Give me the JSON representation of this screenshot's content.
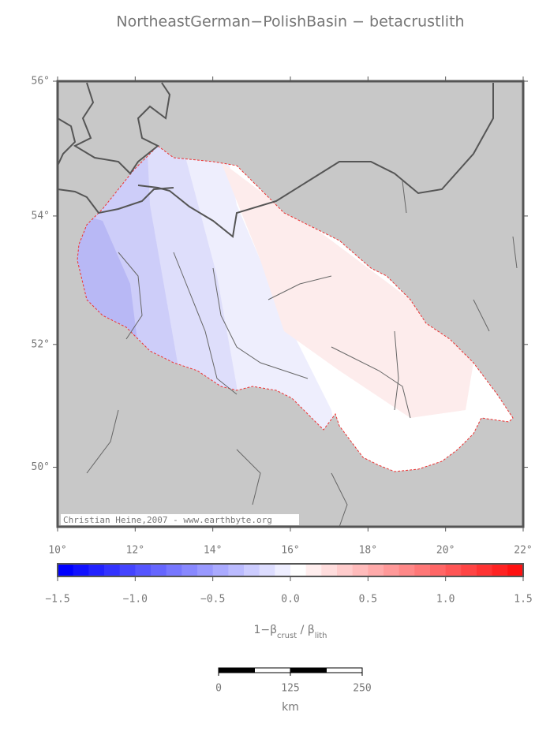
{
  "title": "NortheastGerman−PolishBasin − betacrustlith",
  "map": {
    "lon_range": [
      10,
      22
    ],
    "lat_range": [
      49,
      56
    ],
    "lon_ticks": [
      {
        "value": 10,
        "label": "10°"
      },
      {
        "value": 12,
        "label": "12°"
      },
      {
        "value": 14,
        "label": "14°"
      },
      {
        "value": 16,
        "label": "16°"
      },
      {
        "value": 18,
        "label": "18°"
      },
      {
        "value": 20,
        "label": "20°"
      },
      {
        "value": 22,
        "label": "22°"
      }
    ],
    "lat_ticks": [
      {
        "value": 50,
        "label": "50°"
      },
      {
        "value": 52,
        "label": "52°"
      },
      {
        "value": 54,
        "label": "54°"
      },
      {
        "value": 56,
        "label": "56°"
      }
    ],
    "credit": "Christian Heine,2007 - www.earthbyte.org"
  },
  "colorbar": {
    "range": [
      -1.5,
      1.5
    ],
    "colors": [
      "#0000ff",
      "#1111ff",
      "#2222ff",
      "#3333ff",
      "#4444ff",
      "#5555ff",
      "#6666ff",
      "#7777ff",
      "#8888ff",
      "#9999ff",
      "#aaaaff",
      "#bbbbff",
      "#ccccff",
      "#ddddff",
      "#eeeeff",
      "#ffffff",
      "#ffeeee",
      "#ffdddd",
      "#ffcccc",
      "#ffbbbb",
      "#ffaaaa",
      "#ff9999",
      "#ff8888",
      "#ff7777",
      "#ff6666",
      "#ff5555",
      "#ff4444",
      "#ff3333",
      "#ff2222",
      "#ff1111"
    ],
    "ticks": [
      {
        "value": -1.5,
        "label": "−1.5"
      },
      {
        "value": -1.0,
        "label": "−1.0"
      },
      {
        "value": -0.5,
        "label": "−0.5"
      },
      {
        "value": 0,
        "label": "0.0"
      },
      {
        "value": 0.5,
        "label": "0.5"
      },
      {
        "value": 1.0,
        "label": "1.0"
      },
      {
        "value": 1.5,
        "label": "1.5"
      }
    ],
    "label_parts": [
      {
        "text": "1−β"
      },
      {
        "text": "crust",
        "sub": true
      },
      {
        "text": " / β"
      },
      {
        "text": "lith",
        "sub": true
      }
    ]
  },
  "scale_bar": {
    "range": [
      0,
      250
    ],
    "ticks": [
      0,
      125,
      250
    ],
    "unit": "km"
  }
}
